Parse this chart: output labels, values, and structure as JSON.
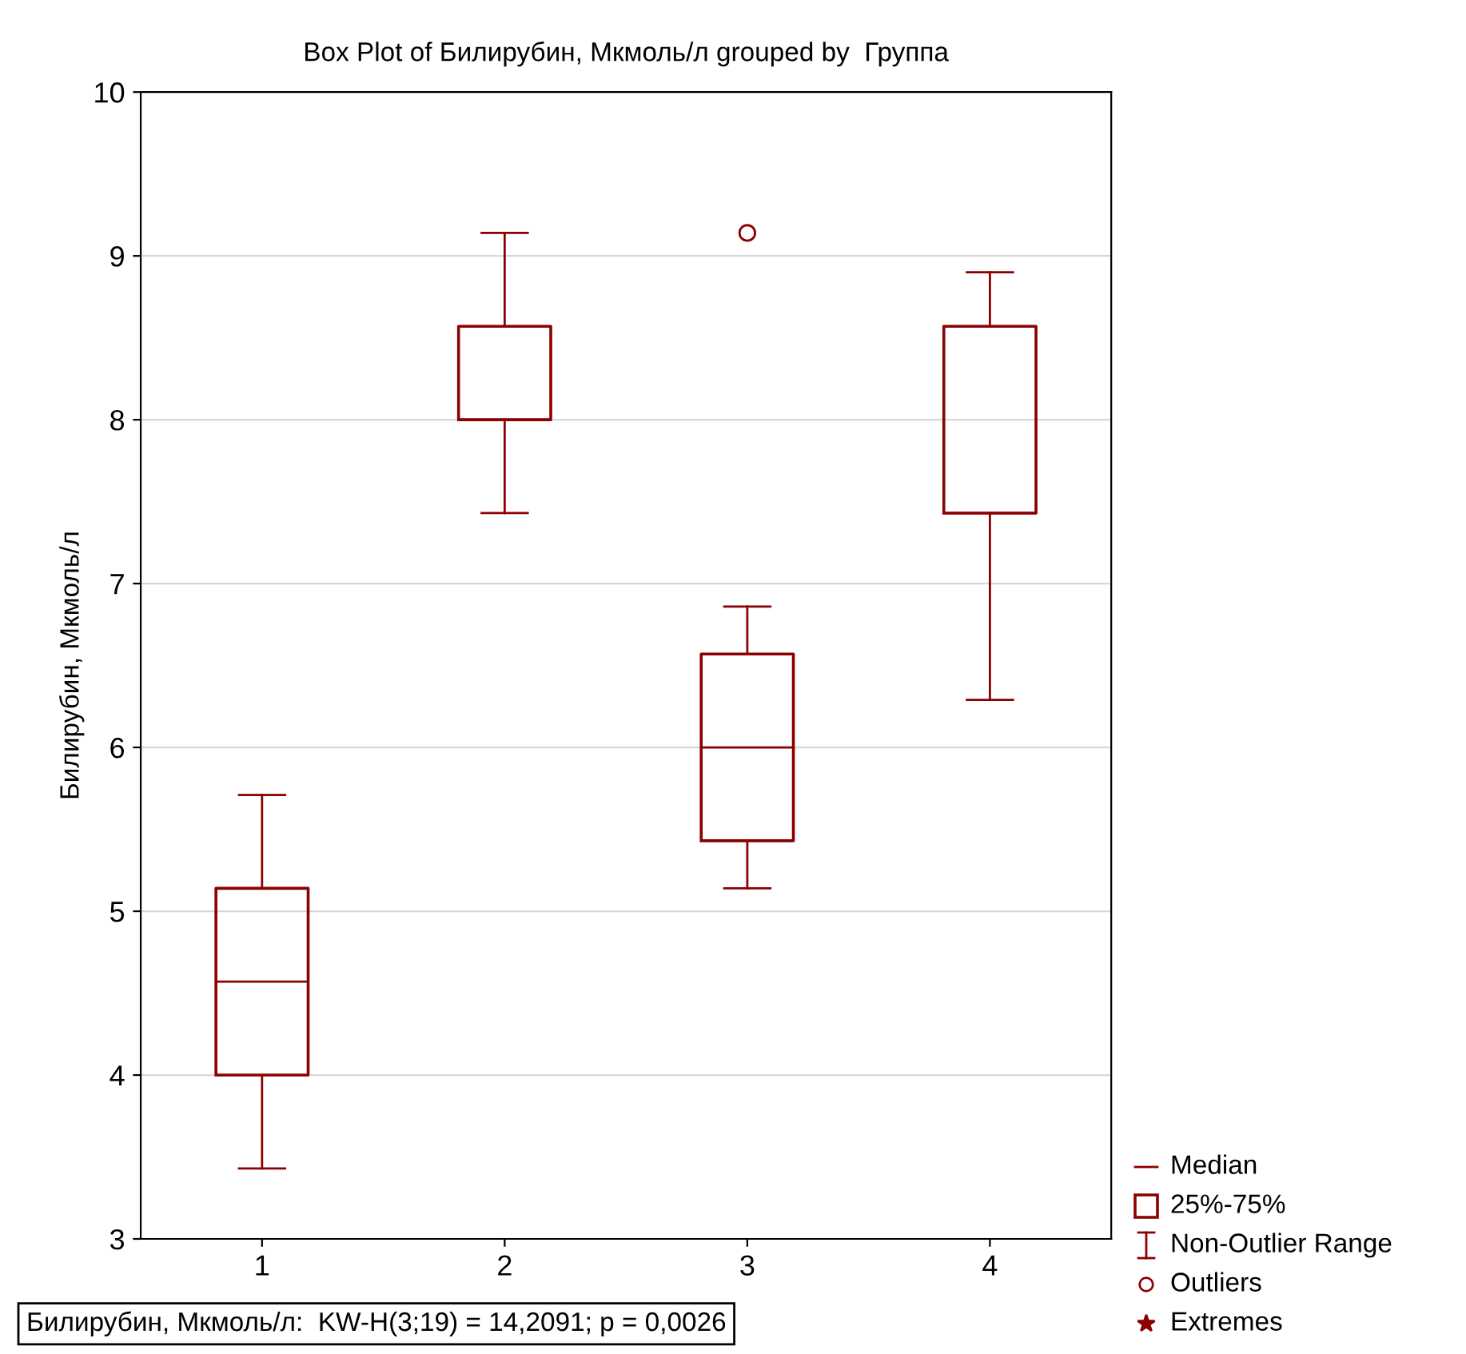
{
  "chart_data": {
    "type": "box",
    "title": "Box Plot of Билирубин, Мкмоль/л grouped by  Группа",
    "ylabel": "Билирубин, Мкмоль/л",
    "categories": [
      "1",
      "2",
      "3",
      "4"
    ],
    "boxes": [
      {
        "low": 3.43,
        "q1": 4.0,
        "median": 4.57,
        "q3": 5.14,
        "high": 5.71
      },
      {
        "low": 7.43,
        "q1": 8.0,
        "median": 8.0,
        "q3": 8.57,
        "high": 9.14
      },
      {
        "low": 5.14,
        "q1": 5.43,
        "median": 6.0,
        "q3": 6.57,
        "high": 6.86,
        "outliers": [
          9.14
        ]
      },
      {
        "low": 6.29,
        "q1": 7.43,
        "median": 7.43,
        "q3": 8.57,
        "high": 8.9
      }
    ],
    "color": "#8b0000",
    "ylim": [
      3,
      10
    ],
    "yticks": [
      3,
      4,
      5,
      6,
      7,
      8,
      9,
      10
    ],
    "grid": "y",
    "annotations": [
      "Билирубин, Мкмоль/л:  KW-H(3;19) = 14,2091; p = 0,0026",
      "Median",
      "25%-75%",
      "Non-Outlier Range",
      "Outliers",
      "Extremes"
    ]
  }
}
